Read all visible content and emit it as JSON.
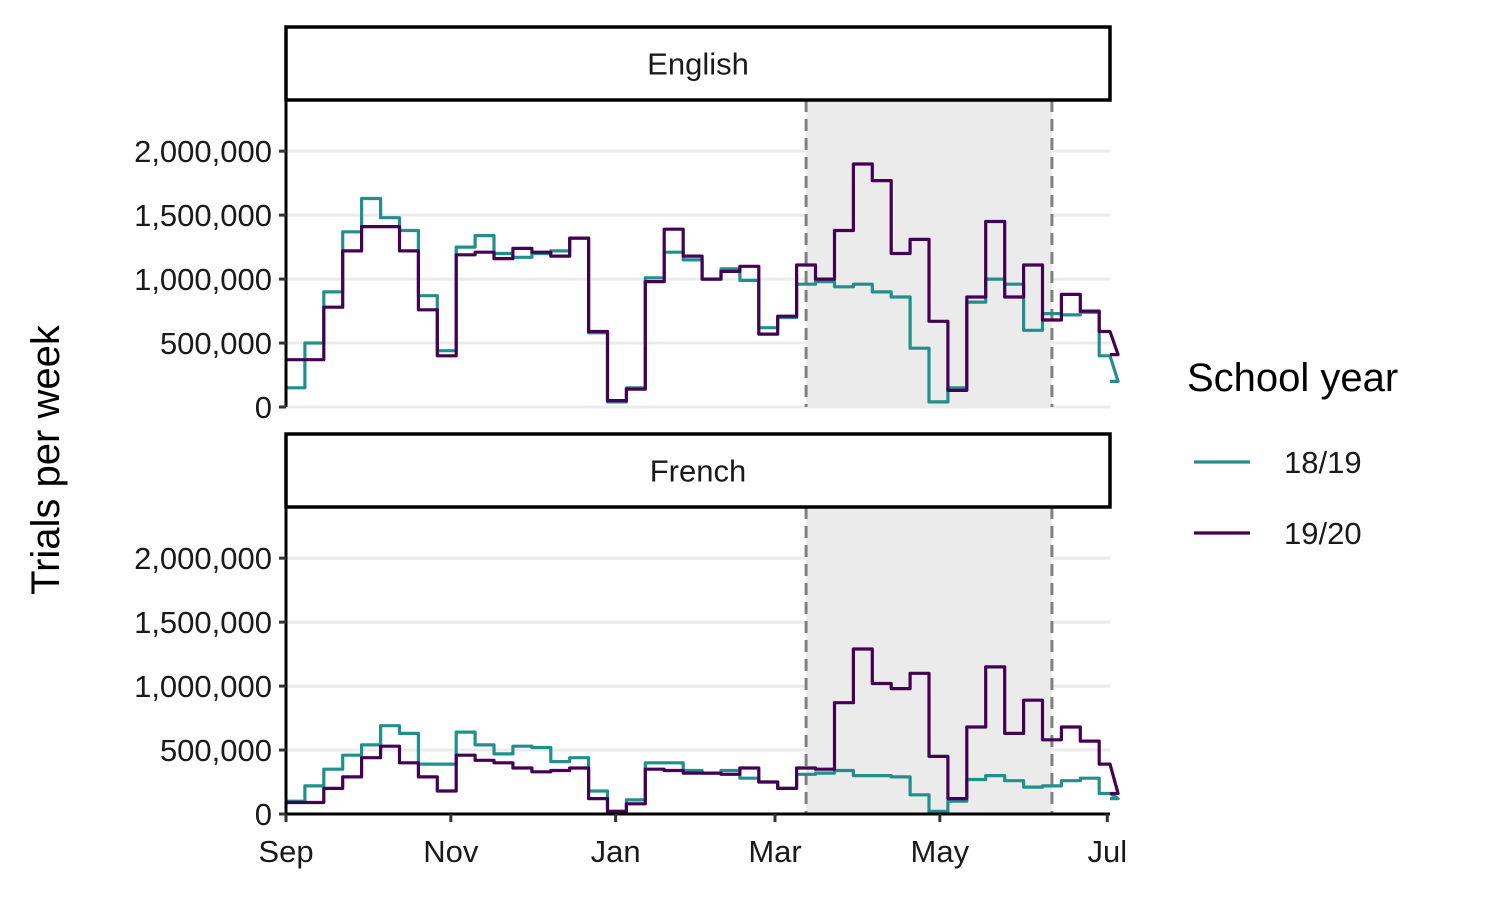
{
  "chart_data": {
    "type": "line",
    "step": true,
    "ylabel": "Trials per week",
    "ylim": [
      0,
      2400000
    ],
    "yticks": [
      0,
      500000,
      1000000,
      1500000,
      2000000
    ],
    "ytick_labels": [
      "0",
      "500,000",
      "1,000,000",
      "1,500,000",
      "2,000,000"
    ],
    "xlim": [
      "Sep",
      "Jul"
    ],
    "xticks": [
      "Sep",
      "Nov",
      "Jan",
      "Mar",
      "May",
      "Jul"
    ],
    "grid": "horizontal",
    "shaded_period": {
      "start_week": 27.5,
      "end_week": 40.5,
      "fill": "#ebebeb",
      "border": "#808080"
    },
    "legend": {
      "title": "School year",
      "placement": "right"
    },
    "series_colors": {
      "18/19": "#21908C",
      "19/20": "#440154"
    },
    "week_unit": "weeks from 1 Sep",
    "panels": [
      {
        "label": "English",
        "series": [
          {
            "name": "18/19",
            "values": [
              150000,
              500000,
              900000,
              1370000,
              1630000,
              1480000,
              1380000,
              870000,
              440000,
              1250000,
              1340000,
              1200000,
              1170000,
              1200000,
              1220000,
              1320000,
              580000,
              40000,
              150000,
              1010000,
              1210000,
              1150000,
              1000000,
              1080000,
              990000,
              620000,
              700000,
              960000,
              980000,
              940000,
              960000,
              900000,
              860000,
              460000,
              40000,
              150000,
              820000,
              1000000,
              960000,
              600000,
              730000,
              720000,
              740000,
              400000,
              200000
            ]
          },
          {
            "name": "19/20",
            "values": [
              370000,
              370000,
              780000,
              1220000,
              1410000,
              1410000,
              1220000,
              760000,
              400000,
              1190000,
              1210000,
              1160000,
              1240000,
              1210000,
              1180000,
              1320000,
              590000,
              50000,
              140000,
              980000,
              1390000,
              1180000,
              1000000,
              1060000,
              1100000,
              570000,
              710000,
              1110000,
              1000000,
              1380000,
              1900000,
              1770000,
              1200000,
              1310000,
              670000,
              130000,
              860000,
              1450000,
              860000,
              1110000,
              680000,
              880000,
              750000,
              590000,
              410000
            ]
          }
        ]
      },
      {
        "label": "French",
        "series": [
          {
            "name": "18/19",
            "values": [
              100000,
              220000,
              350000,
              460000,
              540000,
              690000,
              630000,
              390000,
              390000,
              640000,
              540000,
              470000,
              530000,
              520000,
              410000,
              440000,
              180000,
              20000,
              110000,
              400000,
              400000,
              340000,
              320000,
              340000,
              280000,
              250000,
              200000,
              310000,
              320000,
              340000,
              300000,
              300000,
              290000,
              150000,
              20000,
              100000,
              270000,
              300000,
              260000,
              210000,
              220000,
              260000,
              280000,
              160000,
              120000
            ]
          },
          {
            "name": "19/20",
            "values": [
              90000,
              90000,
              200000,
              290000,
              440000,
              530000,
              400000,
              290000,
              180000,
              460000,
              420000,
              400000,
              360000,
              330000,
              340000,
              360000,
              120000,
              20000,
              80000,
              350000,
              340000,
              320000,
              320000,
              310000,
              360000,
              250000,
              200000,
              360000,
              350000,
              870000,
              1290000,
              1020000,
              980000,
              1100000,
              450000,
              120000,
              680000,
              1150000,
              630000,
              890000,
              580000,
              680000,
              570000,
              390000,
              160000
            ]
          }
        ]
      }
    ]
  }
}
